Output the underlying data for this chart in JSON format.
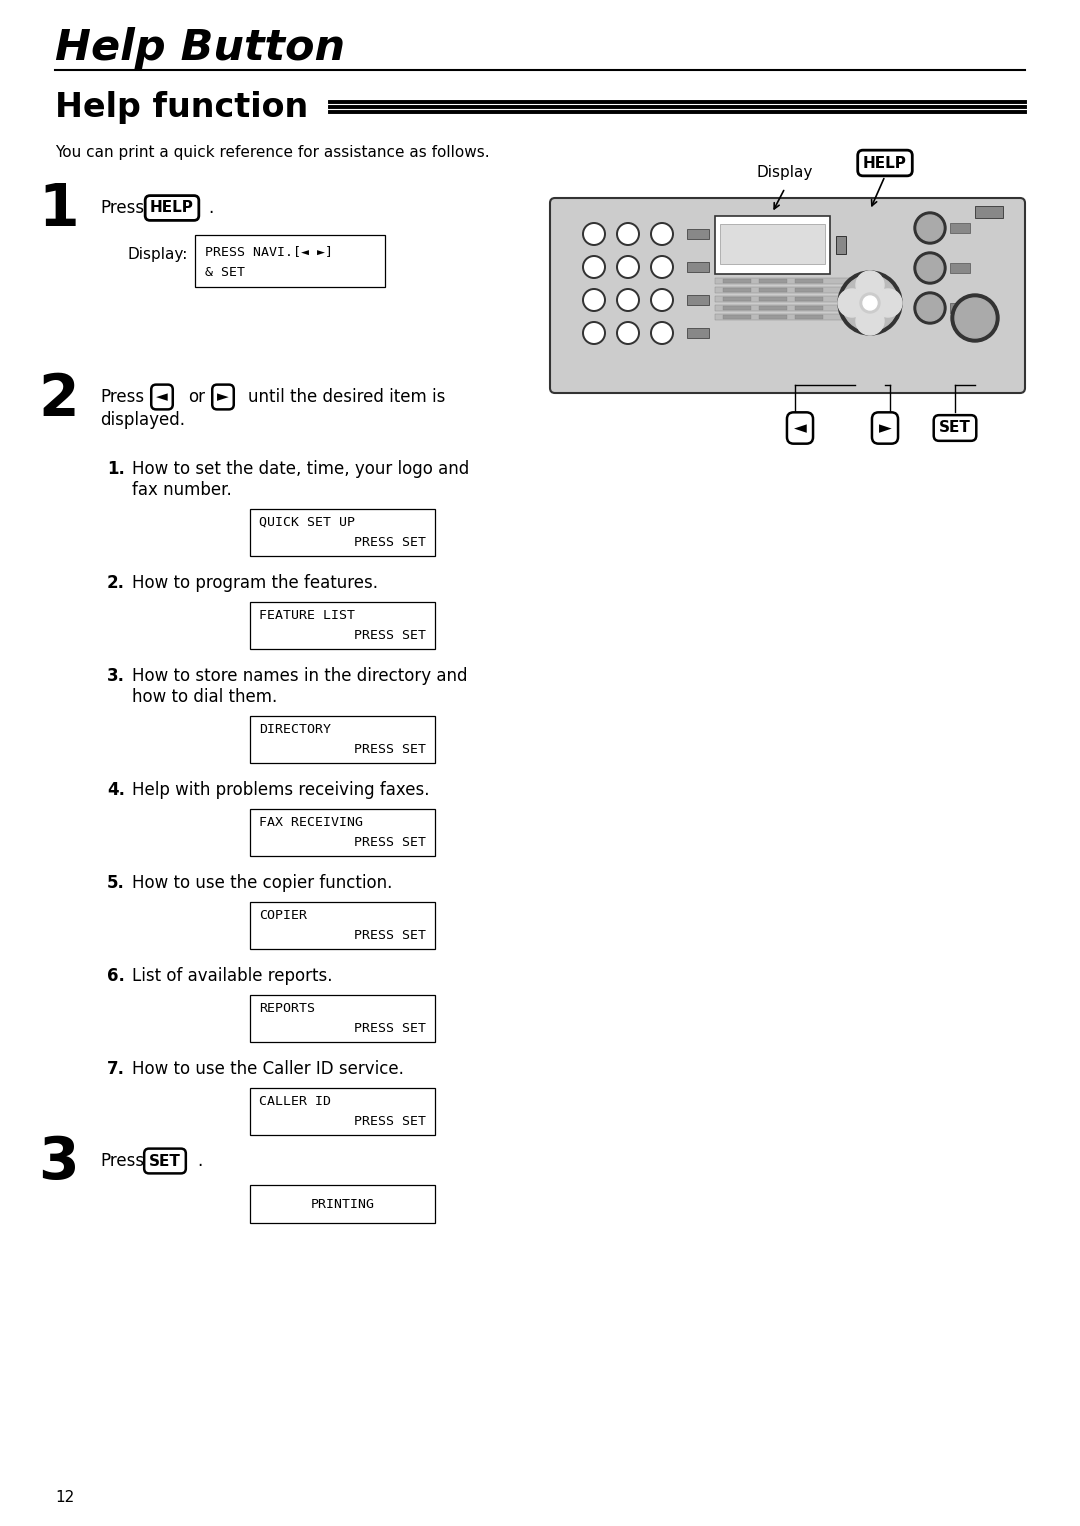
{
  "title": "Help Button",
  "section_title": "Help function",
  "intro_text": "You can print a quick reference for assistance as follows.",
  "background_color": "#ffffff",
  "items": [
    {
      "num": "1",
      "text1": "How to set the date, time, your logo and",
      "text2": "fax number.",
      "line1": "QUICK SET UP",
      "line2": "      PRESS SET"
    },
    {
      "num": "2",
      "text1": "How to program the features.",
      "text2": "",
      "line1": "FEATURE LIST",
      "line2": "      PRESS SET"
    },
    {
      "num": "3",
      "text1": "How to store names in the directory and",
      "text2": "how to dial them.",
      "line1": "DIRECTORY",
      "line2": "      PRESS SET"
    },
    {
      "num": "4",
      "text1": "Help with problems receiving faxes.",
      "text2": "",
      "line1": "FAX RECEIVING",
      "line2": "      PRESS SET"
    },
    {
      "num": "5",
      "text1": "How to use the copier function.",
      "text2": "",
      "line1": "COPIER",
      "line2": "      PRESS SET"
    },
    {
      "num": "6",
      "text1": "List of available reports.",
      "text2": "",
      "line1": "REPORTS",
      "line2": "      PRESS SET"
    },
    {
      "num": "7",
      "text1": "How to use the Caller ID service.",
      "text2": "",
      "line1": "CALLER ID",
      "line2": "      PRESS SET"
    }
  ],
  "page_num": "12",
  "ML": 55,
  "MR": 1025,
  "fax_body_color": "#cccccc",
  "fax_border_color": "#333333",
  "fax_screen_color": "#e8e8e8",
  "fax_key_color": "#888888",
  "fax_key_inner": "#bbbbbb"
}
